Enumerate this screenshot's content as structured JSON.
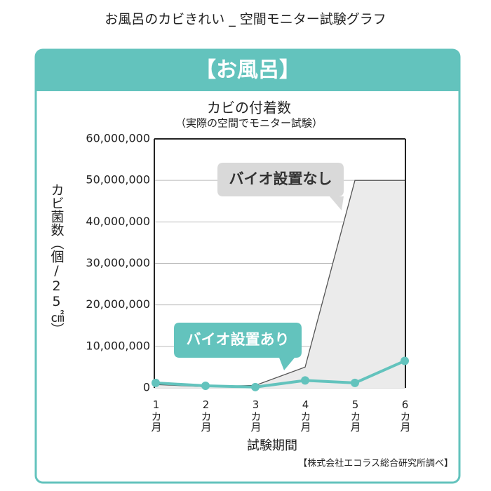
{
  "header": {
    "title": "お風呂のカビきれい _ 空間モニター試験グラフ",
    "section": "【お風呂】"
  },
  "chart_data": {
    "type": "area-line",
    "title": "カビの付着数",
    "subtitle": "（実際の空間でモニター試験）",
    "y_label": "カビ菌数（個/25㎠）",
    "x_label": "試験期間",
    "source": "【株式会社エコラス総合研究所調べ】",
    "categories": [
      "1カ月",
      "2カ月",
      "3カ月",
      "4カ月",
      "5カ月",
      "6カ月"
    ],
    "series": [
      {
        "name": "バイオ設置なし",
        "color": "#555555",
        "fill": "#ebebeb",
        "values": [
          800000,
          300000,
          600000,
          5000000,
          50000000,
          50000000
        ]
      },
      {
        "name": "バイオ設置あり",
        "color": "#63c3bd",
        "values": [
          1200000,
          500000,
          200000,
          1800000,
          1200000,
          6500000
        ]
      }
    ],
    "ylim": [
      0,
      60000000
    ],
    "yticks": [
      0,
      {
        "value": 10000000,
        "label": "10,000,000"
      },
      {
        "value": 20000000,
        "label": "20,000,000"
      },
      {
        "value": 30000000,
        "label": "30,000,000"
      },
      {
        "value": 40000000,
        "label": "40,000,000"
      },
      {
        "value": 50000000,
        "label": "50,000,000"
      },
      {
        "value": 60000000,
        "label": "60,000,000"
      }
    ],
    "grid": true
  }
}
